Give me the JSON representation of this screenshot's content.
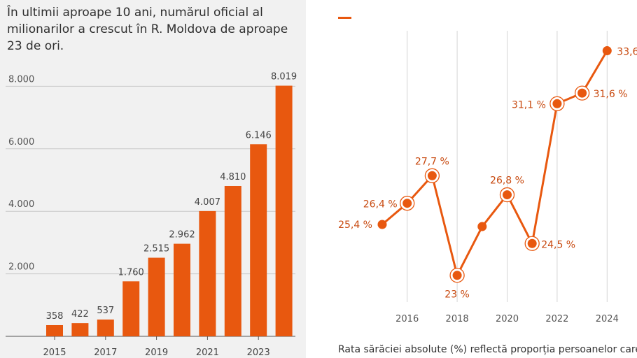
{
  "left_title": "În ultimii aproape 10 ani, numărul oficial al milionarilor a crescut în R. Moldova de aproape 23 de ori.",
  "right_footnote": "Rata sărăciei absolute (%) reflectă proporția persoanelor care",
  "colors": {
    "accent": "#e8580f",
    "panel_bg": "#f1f1f1",
    "grid": "#c9c9c9",
    "text": "#333333"
  },
  "chart_data": [
    {
      "type": "bar",
      "title": "În ultimii aproape 10 ani, numărul oficial al milionarilor a crescut în R. Moldova de aproape 23 de ori.",
      "x": [
        2015,
        2016,
        2017,
        2018,
        2019,
        2020,
        2021,
        2022,
        2023,
        2024
      ],
      "values": [
        358,
        422,
        537,
        1760,
        2515,
        2962,
        4007,
        4810,
        6146,
        8019
      ],
      "value_labels": [
        "358",
        "422",
        "537",
        "1.760",
        "2.515",
        "2.962",
        "4.007",
        "4.810",
        "6.146",
        "8.019"
      ],
      "x_tick_labels": [
        "2015",
        "2017",
        "2019",
        "2021",
        "2023"
      ],
      "y_ticks": [
        2000,
        4000,
        6000,
        8000
      ],
      "y_tick_labels": [
        "2.000",
        "4.000",
        "6.000",
        "8.000"
      ],
      "ylim": [
        0,
        8500
      ],
      "grid": "horizontal"
    },
    {
      "type": "line",
      "x": [
        2015,
        2016,
        2017,
        2018,
        2019,
        2020,
        2021,
        2022,
        2023,
        2024
      ],
      "values": [
        25.4,
        26.4,
        27.7,
        23.0,
        25.3,
        26.8,
        24.5,
        31.1,
        31.6,
        33.6
      ],
      "point_labels": [
        "25,4 %",
        "26,4 %",
        "27,7 %",
        "23 %",
        "",
        "26,8 %",
        "24,5 %",
        "31,1 %",
        "31,6 %",
        "33,6"
      ],
      "highlighted": [
        false,
        true,
        true,
        true,
        false,
        true,
        true,
        true,
        true,
        false
      ],
      "x_tick_labels": [
        "2016",
        "2018",
        "2020",
        "2022",
        "2024"
      ],
      "grid": "vertical",
      "footnote": "Rata sărăciei absolute (%) reflectă proporția persoanelor care"
    }
  ]
}
